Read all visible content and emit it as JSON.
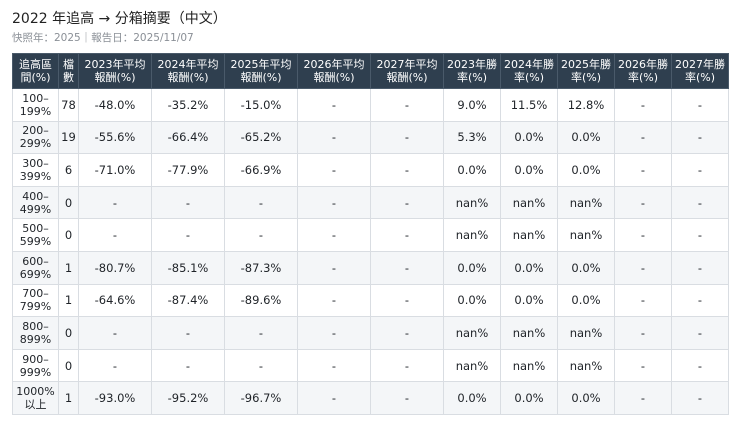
{
  "header": {
    "title": "2022 年追高 → 分箱摘要（中文）",
    "subtitle": "快照年：2025｜報告日：2025/11/07"
  },
  "table": {
    "columns": [
      "追高區間(%)",
      "檔數",
      "2023年平均報酬(%)",
      "2024年平均報酬(%)",
      "2025年平均報酬(%)",
      "2026年平均報酬(%)",
      "2027年平均報酬(%)",
      "2023年勝率(%)",
      "2024年勝率(%)",
      "2025年勝率(%)",
      "2026年勝率(%)",
      "2027年勝率(%)"
    ],
    "rows": [
      [
        "100–199%",
        "78",
        "-48.0%",
        "-35.2%",
        "-15.0%",
        "-",
        "-",
        "9.0%",
        "11.5%",
        "12.8%",
        "-",
        "-"
      ],
      [
        "200–299%",
        "19",
        "-55.6%",
        "-66.4%",
        "-65.2%",
        "-",
        "-",
        "5.3%",
        "0.0%",
        "0.0%",
        "-",
        "-"
      ],
      [
        "300–399%",
        "6",
        "-71.0%",
        "-77.9%",
        "-66.9%",
        "-",
        "-",
        "0.0%",
        "0.0%",
        "0.0%",
        "-",
        "-"
      ],
      [
        "400–499%",
        "0",
        "-",
        "-",
        "-",
        "-",
        "-",
        "nan%",
        "nan%",
        "nan%",
        "-",
        "-"
      ],
      [
        "500–599%",
        "0",
        "-",
        "-",
        "-",
        "-",
        "-",
        "nan%",
        "nan%",
        "nan%",
        "-",
        "-"
      ],
      [
        "600–699%",
        "1",
        "-80.7%",
        "-85.1%",
        "-87.3%",
        "-",
        "-",
        "0.0%",
        "0.0%",
        "0.0%",
        "-",
        "-"
      ],
      [
        "700–799%",
        "1",
        "-64.6%",
        "-87.4%",
        "-89.6%",
        "-",
        "-",
        "0.0%",
        "0.0%",
        "0.0%",
        "-",
        "-"
      ],
      [
        "800–899%",
        "0",
        "-",
        "-",
        "-",
        "-",
        "-",
        "nan%",
        "nan%",
        "nan%",
        "-",
        "-"
      ],
      [
        "900–999%",
        "0",
        "-",
        "-",
        "-",
        "-",
        "-",
        "nan%",
        "nan%",
        "nan%",
        "-",
        "-"
      ],
      [
        "1000%以上",
        "1",
        "-93.0%",
        "-95.2%",
        "-96.7%",
        "-",
        "-",
        "0.0%",
        "0.0%",
        "0.0%",
        "-",
        "-"
      ]
    ]
  }
}
